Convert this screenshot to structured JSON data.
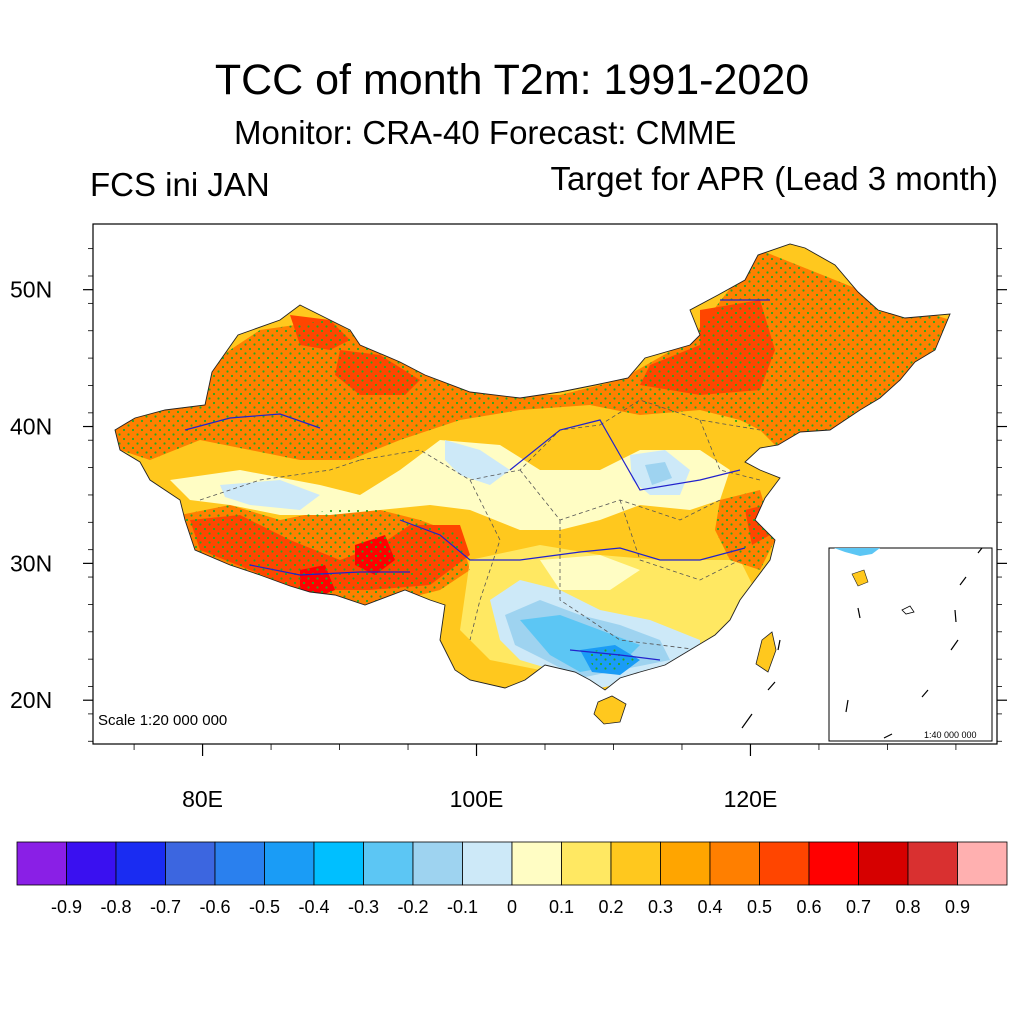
{
  "title": "TCC of month T2m: 1991-2020",
  "subtitle": "Monitor: CRA-40   Forecast: CMME",
  "left_label": "FCS ini JAN",
  "right_label": "Target for APR (Lead 3 month)",
  "map": {
    "scale_main": "Scale 1:20 000 000",
    "scale_inset": "1:40 000 000",
    "lat_labels": [
      "50N",
      "40N",
      "30N",
      "20N"
    ],
    "lat_values": [
      50,
      40,
      30,
      20
    ],
    "lon_labels": [
      "80E",
      "100E",
      "120E"
    ],
    "lon_values": [
      80,
      100,
      120
    ],
    "extent": {
      "lon_min": 72,
      "lon_max": 138,
      "lat_min": 16.8,
      "lat_max": 54.8
    },
    "stipple_color": "#22aa22",
    "river_color": "#2222cc"
  },
  "colorbar": {
    "colors": [
      "#8a1fe6",
      "#3a10f0",
      "#1a2cf2",
      "#3c66e0",
      "#2a80ee",
      "#1a9cf6",
      "#00bfff",
      "#5cc6f4",
      "#9ed3f0",
      "#cde9f8",
      "#fffdc4",
      "#ffe862",
      "#ffc81e",
      "#ffa500",
      "#ff7f00",
      "#ff4500",
      "#ff0000",
      "#d60000",
      "#d93030",
      "#ffb0b0"
    ],
    "labels": [
      "-0.9",
      "-0.8",
      "-0.7",
      "-0.6",
      "-0.5",
      "-0.4",
      "-0.3",
      "-0.2",
      "-0.1",
      "0",
      "0.1",
      "0.2",
      "0.3",
      "0.4",
      "0.5",
      "0.6",
      "0.7",
      "0.8",
      "0.9"
    ]
  }
}
